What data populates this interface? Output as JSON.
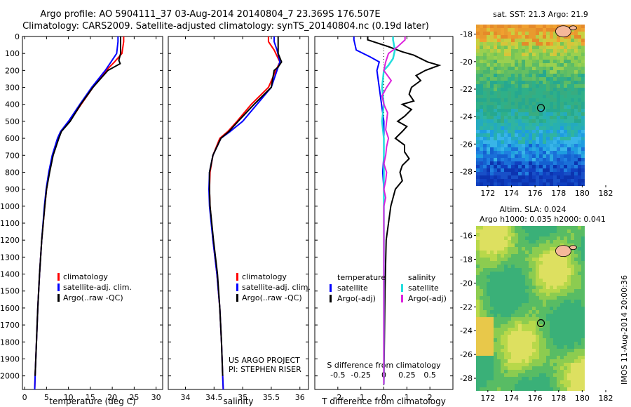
{
  "title_line1": "Argo profile: AO 5904111_37 03-Aug-2014 20140804_7 23.369S 176.507E",
  "title_line2": "Climatology: CARS2009. Satellite-adjusted climatology: synTS_20140804.nc (0.19d later)",
  "panel_sst_title": "sat. SST: 21.3 Argo: 21.9",
  "panel_sla_title1": "Altim. SLA: 0.024",
  "panel_sla_title2": "Argo h1000: 0.035 h2000: 0.041",
  "side_stamp": "IMOS 11-Aug-2014 20:00:36",
  "project_line1": "US ARGO PROJECT",
  "project_line2": "PI: STEPHEN RISER",
  "colors": {
    "climatology": "#ff0000",
    "satellite": "#0000ff",
    "argo": "#000000",
    "sal_satellite": "#22dddd",
    "sal_argo": "#dd22dd",
    "coast": "#f5b89a"
  },
  "chart_data": [
    {
      "type": "line",
      "xlabel": "temperature (deg C)",
      "ylabel": "",
      "xlim": [
        -0.5,
        31.5
      ],
      "ylim": [
        2080,
        0
      ],
      "xticks": [
        0,
        5,
        10,
        15,
        20,
        25,
        30
      ],
      "yticks": [
        0,
        100,
        200,
        300,
        400,
        500,
        600,
        700,
        800,
        900,
        1000,
        1100,
        1200,
        1300,
        1400,
        1500,
        1600,
        1700,
        1800,
        1900,
        2000
      ],
      "legend": [
        "climatology",
        "satellite-adj. clim.",
        "Argo(..raw -QC)"
      ],
      "series": [
        {
          "name": "climatology",
          "color": "#ff0000",
          "depth": [
            0,
            30,
            100,
            150,
            200,
            300,
            400,
            500,
            560,
            600,
            700,
            800,
            900,
            1000,
            1200,
            1400,
            1600,
            1800,
            2000,
            2080
          ],
          "values": [
            22.6,
            22.6,
            22.2,
            20.5,
            18.6,
            15.6,
            12.9,
            10.3,
            8.3,
            7.6,
            6.4,
            5.6,
            5.0,
            4.6,
            3.9,
            3.4,
            3.0,
            2.7,
            2.4,
            2.3
          ]
        },
        {
          "name": "satellite-adj. clim.",
          "color": "#0000ff",
          "depth": [
            0,
            30,
            100,
            150,
            200,
            300,
            400,
            500,
            560,
            600,
            700,
            800,
            900,
            1000,
            1200,
            1400,
            1600,
            1800,
            2000,
            2080
          ],
          "values": [
            21.3,
            21.3,
            21.0,
            19.7,
            18.4,
            15.3,
            12.6,
            10.0,
            8.2,
            7.5,
            6.3,
            5.5,
            4.9,
            4.5,
            3.9,
            3.4,
            3.0,
            2.7,
            2.4,
            2.3
          ]
        },
        {
          "name": "Argo(..raw -QC)",
          "color": "#000000",
          "depth": [
            0,
            30,
            100,
            140,
            160,
            200,
            300,
            400,
            500,
            560,
            600,
            700,
            800,
            900,
            1000,
            1200,
            1400,
            1600,
            1800,
            2000
          ],
          "values": [
            21.9,
            21.9,
            21.9,
            21.5,
            21.8,
            19.0,
            15.6,
            12.8,
            10.4,
            8.4,
            7.8,
            6.5,
            5.7,
            5.0,
            4.6,
            3.9,
            3.4,
            3.0,
            2.7,
            2.4
          ]
        }
      ]
    },
    {
      "type": "line",
      "xlabel": "salinity",
      "xlim": [
        33.7,
        36.15
      ],
      "ylim": [
        2080,
        0
      ],
      "xticks": [
        34,
        34.5,
        35,
        35.5,
        36
      ],
      "legend": [
        "climatology",
        "satellite-adj. clim.",
        "Argo(..raw -QC)"
      ],
      "series": [
        {
          "name": "climatology",
          "color": "#ff0000",
          "depth": [
            0,
            30,
            80,
            150,
            200,
            300,
            400,
            500,
            560,
            600,
            700,
            800,
            900,
            1000,
            1200,
            1400,
            1600,
            1800,
            2000,
            2080
          ],
          "values": [
            35.45,
            35.45,
            35.55,
            35.65,
            35.58,
            35.45,
            35.15,
            34.9,
            34.74,
            34.6,
            34.48,
            34.43,
            34.42,
            34.43,
            34.48,
            34.55,
            34.6,
            34.63,
            34.65,
            34.66
          ]
        },
        {
          "name": "satellite-adj. clim.",
          "color": "#0000ff",
          "depth": [
            0,
            30,
            80,
            150,
            200,
            300,
            400,
            500,
            560,
            600,
            700,
            800,
            900,
            1000,
            1200,
            1400,
            1600,
            1800,
            2000,
            2080
          ],
          "values": [
            35.55,
            35.55,
            35.6,
            35.65,
            35.6,
            35.5,
            35.25,
            35.0,
            34.78,
            34.62,
            34.48,
            34.42,
            34.41,
            34.42,
            34.48,
            34.55,
            34.6,
            34.63,
            34.65,
            34.66
          ]
        },
        {
          "name": "Argo(..raw -QC)",
          "color": "#000000",
          "depth": [
            0,
            30,
            100,
            150,
            180,
            200,
            300,
            400,
            500,
            560,
            600,
            700,
            800,
            900,
            1000,
            1200,
            1400,
            1600,
            1800,
            2000
          ],
          "values": [
            35.62,
            35.62,
            35.62,
            35.68,
            35.62,
            35.55,
            35.5,
            35.2,
            34.92,
            34.76,
            34.62,
            34.48,
            34.42,
            34.42,
            34.43,
            34.49,
            34.56,
            34.6,
            34.63,
            34.65
          ]
        }
      ]
    },
    {
      "type": "line",
      "xlabel_top": "S difference from climatology",
      "xlabel": "T difference from climatology",
      "xlim": [
        -3,
        3
      ],
      "ylim": [
        2080,
        0
      ],
      "xticks": [
        -2,
        -1,
        0,
        1,
        2
      ],
      "xticks_top": [
        -0.5,
        -0.25,
        0,
        0.25,
        0.5
      ],
      "legend_temperature": [
        "temperature",
        "satellite",
        "Argo(-adj)"
      ],
      "legend_salinity": [
        "salinity",
        "satellite",
        "Argo(-adj)"
      ],
      "series": [
        {
          "name": "satellite",
          "color": "#0000ff",
          "depth": [
            0,
            20,
            80,
            120,
            150,
            200,
            300,
            400,
            500,
            600,
            700,
            800,
            900,
            1000,
            1200,
            1500,
            1800,
            2050
          ],
          "values": [
            -1.3,
            -1.3,
            -1.2,
            -0.6,
            -0.2,
            -0.3,
            -0.2,
            -0.1,
            0.0,
            0.0,
            0.0,
            -0.05,
            0.0,
            0.0,
            0.0,
            0.0,
            0.0,
            0.0
          ]
        },
        {
          "name": "Argo(-adj)",
          "color": "#000000",
          "depth": [
            0,
            20,
            60,
            90,
            110,
            150,
            170,
            200,
            230,
            260,
            300,
            340,
            380,
            400,
            430,
            470,
            500,
            530,
            560,
            600,
            640,
            680,
            720,
            760,
            800,
            850,
            900,
            1000,
            1100,
            1200,
            1500,
            2050
          ],
          "values": [
            -0.7,
            -0.7,
            0.2,
            0.8,
            1.3,
            1.9,
            2.4,
            1.8,
            1.4,
            1.6,
            1.2,
            1.1,
            1.3,
            0.8,
            1.2,
            0.9,
            0.6,
            1.0,
            0.8,
            0.5,
            0.9,
            0.9,
            1.1,
            0.8,
            0.7,
            0.8,
            0.5,
            0.3,
            0.2,
            0.1,
            0.05,
            0.0
          ]
        },
        {
          "name": "sal satellite",
          "color": "#22dddd",
          "depth": [
            0,
            20,
            80,
            130,
            170,
            200,
            300,
            400,
            500,
            600,
            700,
            800,
            1000,
            1500,
            2050
          ],
          "values": [
            0.1,
            0.1,
            0.12,
            0.1,
            0.05,
            0.0,
            -0.02,
            0.0,
            -0.02,
            0.0,
            0.0,
            0.0,
            0.0,
            0.0,
            0.0
          ]
        },
        {
          "name": "sal Argo(-adj)",
          "color": "#dd22dd",
          "depth": [
            0,
            20,
            60,
            100,
            150,
            200,
            260,
            300,
            350,
            400,
            450,
            500,
            550,
            600,
            650,
            700,
            750,
            800,
            850,
            900,
            950,
            1000,
            1100,
            1200,
            1300,
            1500,
            2050
          ],
          "values": [
            0.23,
            0.23,
            0.15,
            0.05,
            0.02,
            0.0,
            0.08,
            0.03,
            -0.02,
            0.0,
            0.04,
            0.03,
            0.02,
            0.05,
            0.03,
            0.02,
            0.0,
            0.03,
            0.02,
            0.0,
            0.02,
            0.0,
            0.0,
            0.0,
            0.0,
            0.0,
            0.0
          ]
        }
      ]
    },
    {
      "type": "heatmap",
      "title": "sat. SST: 21.3 Argo: 21.9",
      "xlim": [
        171,
        182
      ],
      "ylim": [
        -29,
        -17.3
      ],
      "xticks": [
        172,
        174,
        176,
        178,
        180,
        182
      ],
      "yticks": [
        -18,
        -20,
        -22,
        -24,
        -26,
        -28
      ],
      "marker": {
        "lon": 176.5,
        "lat": -23.37
      }
    },
    {
      "type": "heatmap",
      "title": "Altim. SLA: 0.024",
      "xlim": [
        171,
        182
      ],
      "ylim": [
        -29,
        -15.2
      ],
      "xticks": [
        172,
        174,
        176,
        178,
        180,
        182
      ],
      "yticks": [
        -16,
        -18,
        -20,
        -22,
        -24,
        -26,
        -28
      ],
      "marker": {
        "lon": 176.5,
        "lat": -23.37
      }
    }
  ]
}
